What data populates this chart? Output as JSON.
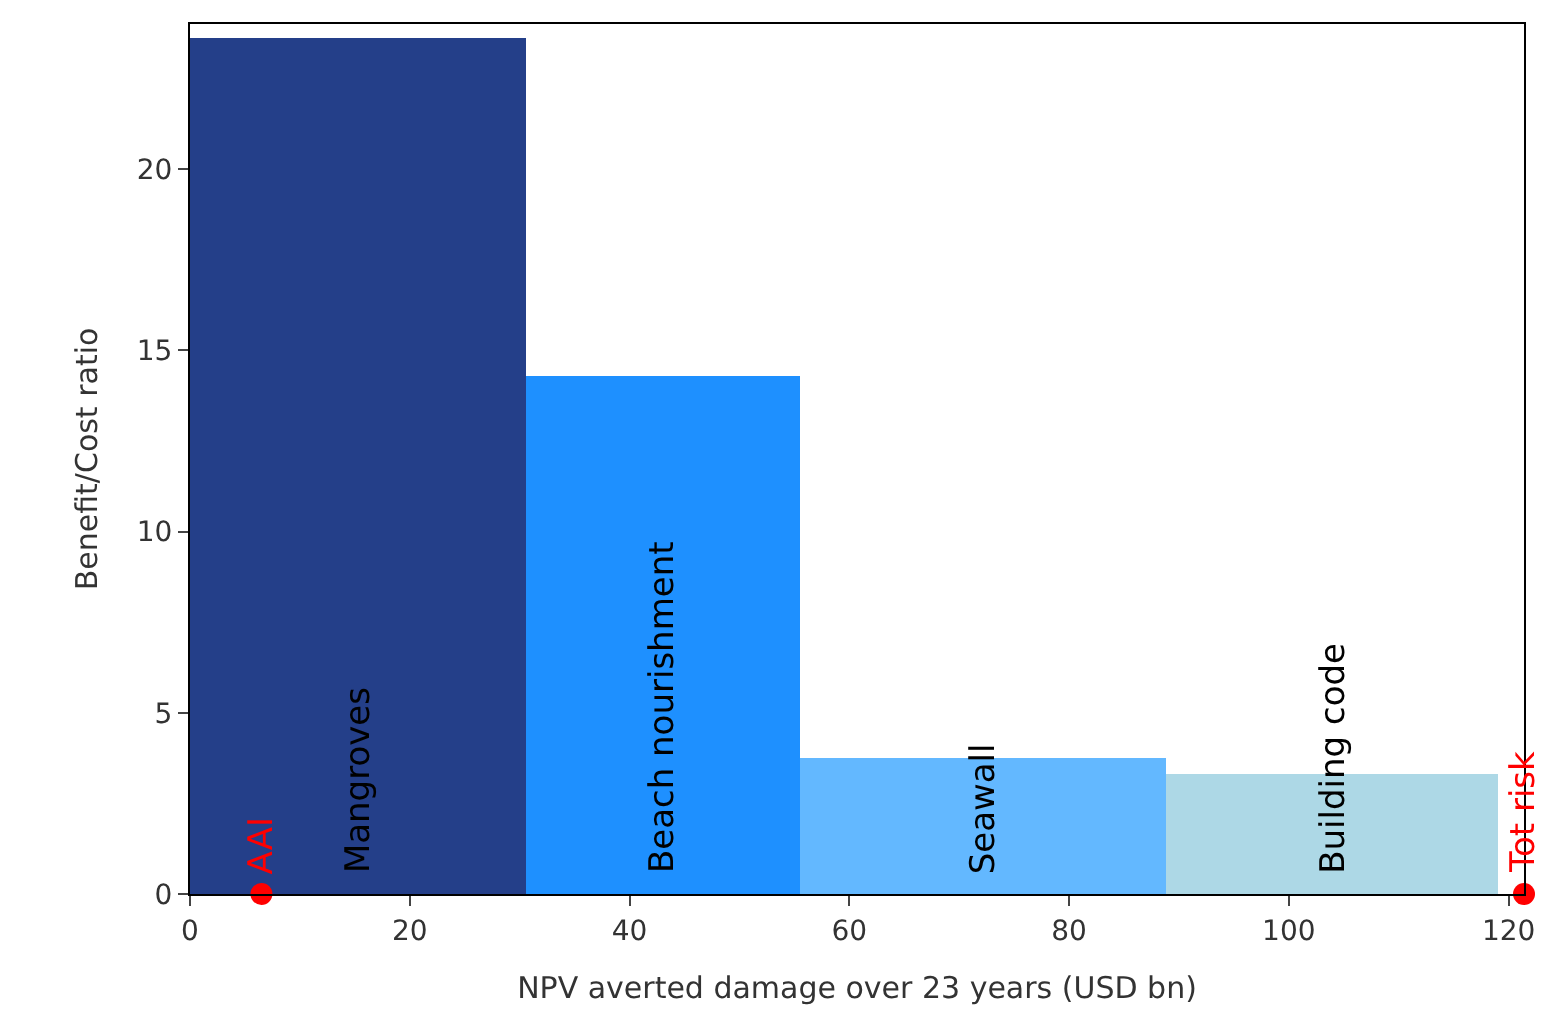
{
  "chart_data": {
    "type": "histogram",
    "xlabel": "NPV averted damage over 23 years (USD bn)",
    "ylabel": "Benefit/Cost ratio",
    "bins": [
      0,
      30.6,
      55.5,
      88.9,
      119.1
    ],
    "values": [
      23.6,
      14.3,
      3.75,
      3.3
    ],
    "colors": [
      "#243f89",
      "#1e90ff",
      "#63b8ff",
      "#add8e6"
    ],
    "series": [
      {
        "type": "scatter",
        "name": "AAI",
        "color": "#ff0000",
        "x": [
          6.5
        ],
        "values": [
          0
        ]
      },
      {
        "type": "scatter",
        "name": "Tot risk",
        "color": "#ff0000",
        "x": [
          121.4
        ],
        "values": [
          0
        ]
      }
    ],
    "marker": "circle",
    "annotations": [
      "Mangroves",
      "Beach nourishment",
      "Seawall",
      "Building code"
    ],
    "xlim": [
      0,
      121.4
    ],
    "ylim": [
      0,
      24
    ],
    "xticks": [
      0,
      20,
      40,
      60,
      80,
      100,
      120
    ],
    "yticks": [
      0,
      5,
      10,
      15,
      20
    ],
    "legend": false
  }
}
